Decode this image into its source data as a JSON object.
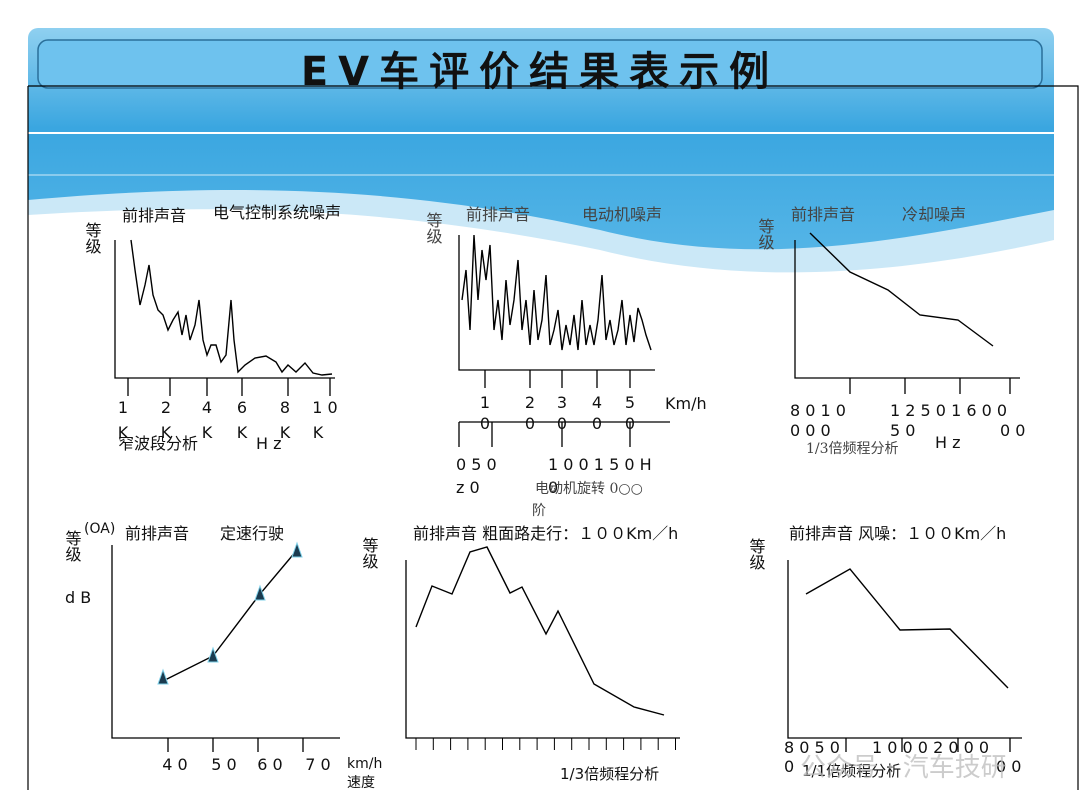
{
  "title": "EV车评价结果表示例",
  "panels": [
    {
      "subject": "前排声音",
      "condition": "电气控制系统噪声",
      "y_label": "等级",
      "tick_row1": [
        "1",
        "2",
        "4",
        "6",
        "8",
        "1 0"
      ],
      "tick_row2": [
        "K",
        "K",
        "K",
        "K",
        "K",
        "K"
      ],
      "x_label": "窄波段分析",
      "unit": "H z"
    },
    {
      "subject": "前排声音",
      "condition": "电动机噪声",
      "y_label": "等级",
      "tick_row1": [
        "1",
        "2",
        "3",
        "4",
        "5"
      ],
      "tick_row2": [
        "0",
        "0",
        "0",
        "0",
        "0"
      ],
      "unit": "Km/h",
      "axis2_row1": [
        "0  5 0",
        "1 0 0   1 5 0 H"
      ],
      "axis2_row2": [
        "z   0",
        "0"
      ],
      "x_label": "电动机旋转 0○○",
      "x_label2": "阶"
    },
    {
      "subject": "前排声音",
      "condition": "冷却噪声",
      "y_label": "等级",
      "tick_row1": [
        "8 0  1 0",
        "1 2 5 0 1 6 0 0"
      ],
      "tick_row2": [
        "0     0 0",
        "5 0",
        "0 0"
      ],
      "x_label": "1/3倍频程分析",
      "unit": "H z"
    },
    {
      "prefix": "(OA)",
      "subject": "前排声音",
      "condition": "定速行驶",
      "y_label": "等级",
      "y_unit": "d B",
      "tick_row1": [
        "4 0",
        "5 0",
        "6 0",
        "7 0"
      ],
      "unit": "km/h",
      "x_label": "速度"
    },
    {
      "title": "前排声音 粗面路走行：１００Km／h",
      "y_label": "等级",
      "x_label": "1/3倍频程分析"
    },
    {
      "title": "前排声音 风噪：１００Km／h",
      "y_label": "等级",
      "tick_row1": [
        "8 0  5 0",
        "1 0 0 0 2 0 0 0"
      ],
      "tick_row2": [
        "0",
        "0 0"
      ],
      "x_label": "1/1倍频程分析"
    }
  ],
  "watermark": "公众号 · 汽车技研"
}
